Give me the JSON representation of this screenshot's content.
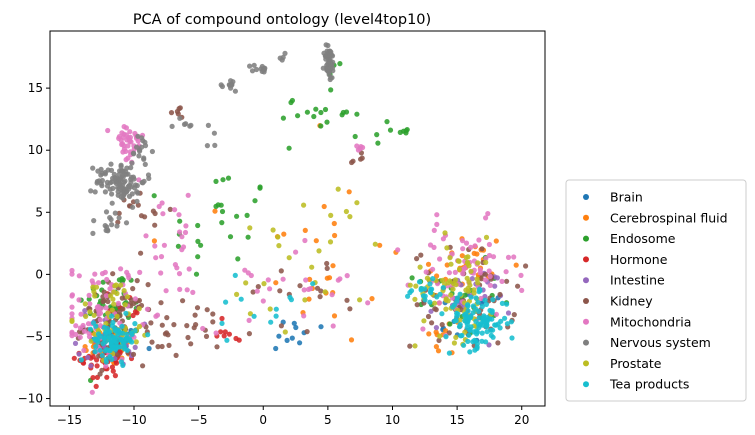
{
  "chart_data": {
    "type": "scatter",
    "title": "PCA of compound ontology (level4top10)",
    "xlabel": "",
    "ylabel": "",
    "xlim": [
      -16.5,
      21.8
    ],
    "ylim": [
      -10.6,
      19.6
    ],
    "xticks": [
      -15,
      -10,
      -5,
      0,
      5,
      10,
      15,
      20
    ],
    "yticks": [
      -10,
      -5,
      0,
      5,
      10,
      15
    ],
    "grid": false,
    "legend_placement": "outside-right-bottom",
    "series": [
      {
        "name": "Brain",
        "color": "#1f77b4",
        "clusters": [
          [
            -11.5,
            -5.5,
            1.2,
            0.8,
            25
          ],
          [
            2.5,
            -5.0,
            2.2,
            1.0,
            10
          ],
          [
            16,
            -3.5,
            1.8,
            1.4,
            12
          ]
        ]
      },
      {
        "name": "Cerebrospinal fluid",
        "color": "#ff7f0e",
        "clusters": [
          [
            -11.8,
            -5.8,
            1.3,
            1.0,
            30
          ],
          [
            4.5,
            1.0,
            4.0,
            4.5,
            25
          ],
          [
            15.5,
            0.5,
            2.2,
            2.0,
            30
          ],
          [
            14.0,
            -5.0,
            1.5,
            1.2,
            10
          ],
          [
            4.2,
            12.4,
            0.3,
            0.3,
            1
          ]
        ]
      },
      {
        "name": "Endosome",
        "color": "#2ca02c",
        "clusters": [
          [
            -11.5,
            -2.5,
            1.5,
            1.8,
            45
          ],
          [
            -3.5,
            3.5,
            2.5,
            3.5,
            25
          ],
          [
            4.5,
            13.5,
            2.0,
            1.8,
            20
          ],
          [
            9.5,
            11.5,
            1.2,
            0.6,
            10
          ],
          [
            15.0,
            -2.0,
            2.0,
            1.8,
            25
          ]
        ]
      },
      {
        "name": "Hormone",
        "color": "#d62728",
        "clusters": [
          [
            -12.2,
            -6.8,
            1.2,
            1.2,
            45
          ],
          [
            -2.5,
            -4.5,
            1.0,
            0.8,
            8
          ],
          [
            -11.0,
            -3.0,
            1.5,
            1.0,
            10
          ]
        ]
      },
      {
        "name": "Intestine",
        "color": "#9467bd",
        "clusters": [
          [
            -12.0,
            -5.0,
            1.5,
            1.5,
            30
          ],
          [
            16.0,
            -2.0,
            2.0,
            1.6,
            25
          ]
        ]
      },
      {
        "name": "Kidney",
        "color": "#8c564b",
        "clusters": [
          [
            -11.5,
            -4.0,
            1.5,
            2.0,
            80
          ],
          [
            -6.0,
            -4.5,
            3.5,
            1.5,
            30
          ],
          [
            -9.5,
            5.0,
            1.5,
            1.5,
            15
          ],
          [
            -6.5,
            13.0,
            0.6,
            0.4,
            6
          ],
          [
            7.5,
            9.5,
            0.4,
            0.6,
            5
          ],
          [
            15.5,
            -2.0,
            2.5,
            2.5,
            60
          ],
          [
            3.0,
            -1.5,
            3.0,
            2.0,
            15
          ]
        ]
      },
      {
        "name": "Mitochondria",
        "color": "#e377c2",
        "clusters": [
          [
            -12.5,
            -3.0,
            1.8,
            2.5,
            80
          ],
          [
            -10.5,
            10.5,
            0.8,
            1.2,
            40
          ],
          [
            -7.0,
            2.0,
            2.0,
            2.5,
            25
          ],
          [
            2.0,
            -0.5,
            4.0,
            2.5,
            25
          ],
          [
            15.5,
            0.0,
            2.5,
            2.5,
            70
          ],
          [
            7.3,
            10.3,
            0.4,
            0.3,
            5
          ]
        ]
      },
      {
        "name": "Nervous system",
        "color": "#7f7f7f",
        "clusters": [
          [
            -11.0,
            7.5,
            1.2,
            1.0,
            100
          ],
          [
            -12.0,
            4.3,
            0.8,
            0.8,
            15
          ],
          [
            -9.5,
            10.0,
            0.5,
            0.8,
            15
          ],
          [
            -6.0,
            12.0,
            0.5,
            0.5,
            6
          ],
          [
            -2.5,
            15.2,
            0.3,
            0.3,
            10
          ],
          [
            -0.3,
            16.5,
            0.4,
            0.3,
            12
          ],
          [
            5.1,
            17.0,
            0.25,
            0.9,
            50
          ],
          [
            1.7,
            17.5,
            0.3,
            0.3,
            4
          ],
          [
            -4.0,
            11.0,
            0.5,
            0.6,
            4
          ]
        ]
      },
      {
        "name": "Prostate",
        "color": "#bcbd22",
        "clusters": [
          [
            -11.5,
            -3.5,
            1.8,
            2.0,
            50
          ],
          [
            3.5,
            1.5,
            4.0,
            4.0,
            25
          ],
          [
            15.0,
            -1.0,
            2.0,
            2.5,
            80
          ]
        ]
      },
      {
        "name": "Tea products",
        "color": "#17becf",
        "clusters": [
          [
            -11.5,
            -5.2,
            1.0,
            1.0,
            90
          ],
          [
            16.5,
            -3.8,
            1.5,
            1.3,
            110
          ],
          [
            12.5,
            -1.5,
            1.0,
            0.8,
            20
          ],
          [
            0.5,
            -2.5,
            3.0,
            2.0,
            12
          ]
        ]
      }
    ]
  }
}
